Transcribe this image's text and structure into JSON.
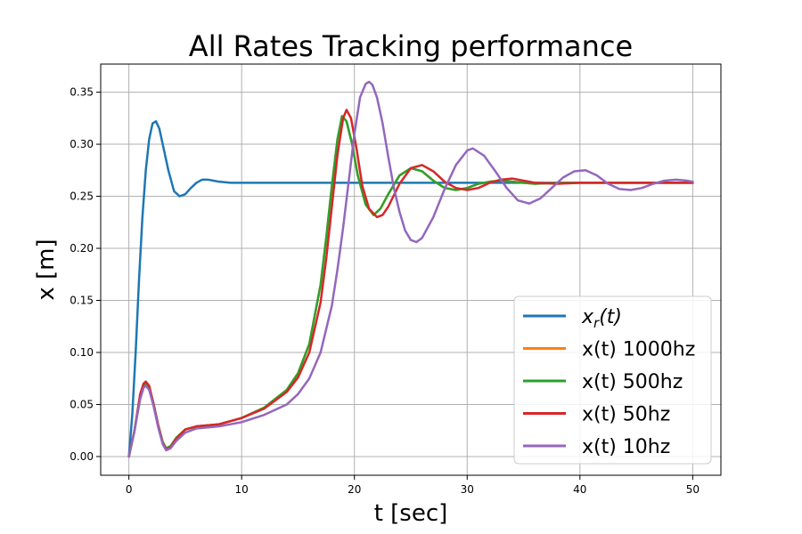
{
  "chart_data": {
    "type": "line",
    "title": "All Rates Tracking performance",
    "xlabel": "t [sec]",
    "ylabel": "x [m]",
    "xlim": [
      -2.5,
      52.5
    ],
    "ylim": [
      -0.018,
      0.377
    ],
    "xticks": [
      0,
      10,
      20,
      30,
      40,
      50
    ],
    "yticks": [
      0.0,
      0.05,
      0.1,
      0.15,
      0.2,
      0.25,
      0.3,
      0.35
    ],
    "xtick_labels": [
      "0",
      "10",
      "20",
      "30",
      "40",
      "50"
    ],
    "ytick_labels": [
      "0.00",
      "0.05",
      "0.10",
      "0.15",
      "0.20",
      "0.25",
      "0.30",
      "0.35"
    ],
    "grid": true,
    "legend_position": "lower-right",
    "series": [
      {
        "name": "x_r(t)",
        "label_base": "x",
        "label_sub": "r",
        "label_tail": "(t)",
        "color": "#1f77b4",
        "x": [
          0,
          0.3,
          0.6,
          0.9,
          1.2,
          1.5,
          1.8,
          2.1,
          2.4,
          2.7,
          3.0,
          3.5,
          4.0,
          4.5,
          5.0,
          5.5,
          6.0,
          6.5,
          7.0,
          7.5,
          8.0,
          9.0,
          10.0,
          12.0,
          15.0,
          20.0,
          30.0,
          40.0,
          50.0
        ],
        "y": [
          0.0,
          0.04,
          0.1,
          0.17,
          0.23,
          0.275,
          0.305,
          0.32,
          0.322,
          0.315,
          0.3,
          0.275,
          0.255,
          0.25,
          0.252,
          0.258,
          0.263,
          0.266,
          0.266,
          0.265,
          0.264,
          0.263,
          0.263,
          0.263,
          0.263,
          0.263,
          0.263,
          0.263,
          0.263
        ]
      },
      {
        "name": "x(t) 1000hz",
        "color": "#ff7f0e",
        "x": [
          0,
          0.5,
          1.0,
          1.3,
          1.5,
          1.8,
          2.2,
          2.6,
          3.0,
          3.3,
          3.7,
          4.2,
          5.0,
          6.0,
          7.0,
          8.0,
          9.0,
          10.0,
          12.0,
          14.0,
          15.0,
          16.0,
          17.0,
          17.5,
          18.0,
          18.5,
          18.9,
          19.3,
          19.8,
          20.3,
          21.0,
          21.7,
          22.3,
          23.0,
          24.0,
          25.0,
          26.0,
          27.0,
          28.0,
          29.0,
          30.0,
          31.0,
          32.0,
          33.0,
          34.0,
          35.0,
          36.0,
          38.0,
          40.0,
          42.0,
          45.0,
          50.0
        ],
        "y": [
          0.0,
          0.025,
          0.058,
          0.068,
          0.07,
          0.066,
          0.05,
          0.03,
          0.014,
          0.008,
          0.01,
          0.018,
          0.026,
          0.029,
          0.03,
          0.031,
          0.034,
          0.037,
          0.047,
          0.064,
          0.08,
          0.108,
          0.165,
          0.21,
          0.26,
          0.305,
          0.327,
          0.322,
          0.3,
          0.27,
          0.242,
          0.232,
          0.238,
          0.252,
          0.27,
          0.277,
          0.274,
          0.265,
          0.258,
          0.256,
          0.258,
          0.262,
          0.264,
          0.265,
          0.264,
          0.263,
          0.262,
          0.263,
          0.263,
          0.263,
          0.263,
          0.263
        ]
      },
      {
        "name": "x(t) 500hz",
        "color": "#2ca02c",
        "x": [
          0,
          0.5,
          1.0,
          1.3,
          1.5,
          1.8,
          2.2,
          2.6,
          3.0,
          3.3,
          3.7,
          4.2,
          5.0,
          6.0,
          7.0,
          8.0,
          9.0,
          10.0,
          12.0,
          14.0,
          15.0,
          16.0,
          17.0,
          17.5,
          18.0,
          18.5,
          18.9,
          19.3,
          19.8,
          20.3,
          21.0,
          21.7,
          22.3,
          23.0,
          24.0,
          25.0,
          26.0,
          27.0,
          28.0,
          29.0,
          30.0,
          31.0,
          32.0,
          33.0,
          34.0,
          35.0,
          36.0,
          38.0,
          40.0,
          42.0,
          45.0,
          50.0
        ],
        "y": [
          0.0,
          0.025,
          0.058,
          0.068,
          0.07,
          0.066,
          0.05,
          0.03,
          0.014,
          0.008,
          0.01,
          0.018,
          0.026,
          0.029,
          0.03,
          0.031,
          0.034,
          0.037,
          0.047,
          0.064,
          0.08,
          0.108,
          0.165,
          0.21,
          0.26,
          0.305,
          0.327,
          0.322,
          0.3,
          0.27,
          0.242,
          0.232,
          0.238,
          0.252,
          0.27,
          0.277,
          0.274,
          0.265,
          0.258,
          0.256,
          0.258,
          0.262,
          0.264,
          0.265,
          0.264,
          0.263,
          0.262,
          0.263,
          0.263,
          0.263,
          0.263,
          0.263
        ]
      },
      {
        "name": "x(t) 50hz",
        "color": "#d62728",
        "x": [
          0,
          0.5,
          1.0,
          1.3,
          1.5,
          1.8,
          2.2,
          2.6,
          3.0,
          3.3,
          3.7,
          4.2,
          5.0,
          6.0,
          7.0,
          8.0,
          9.0,
          10.0,
          12.0,
          14.0,
          15.0,
          16.0,
          17.0,
          17.5,
          18.0,
          18.5,
          19.0,
          19.3,
          19.7,
          20.2,
          20.7,
          21.3,
          22.0,
          22.5,
          23.0,
          24.0,
          25.0,
          26.0,
          27.0,
          28.0,
          29.0,
          30.0,
          31.0,
          32.0,
          33.0,
          34.0,
          35.0,
          36.0,
          38.0,
          40.0,
          42.0,
          45.0,
          50.0
        ],
        "y": [
          0.0,
          0.025,
          0.06,
          0.07,
          0.072,
          0.068,
          0.05,
          0.03,
          0.013,
          0.007,
          0.009,
          0.017,
          0.026,
          0.029,
          0.03,
          0.031,
          0.034,
          0.037,
          0.046,
          0.062,
          0.076,
          0.1,
          0.148,
          0.19,
          0.24,
          0.29,
          0.325,
          0.333,
          0.325,
          0.295,
          0.26,
          0.238,
          0.23,
          0.232,
          0.24,
          0.262,
          0.277,
          0.28,
          0.274,
          0.264,
          0.258,
          0.256,
          0.258,
          0.263,
          0.266,
          0.267,
          0.265,
          0.263,
          0.262,
          0.263,
          0.263,
          0.263,
          0.263
        ]
      },
      {
        "name": "x(t) 10hz",
        "color": "#9467bd",
        "x": [
          0,
          0.5,
          1.0,
          1.3,
          1.5,
          1.8,
          2.2,
          2.6,
          3.0,
          3.3,
          3.7,
          4.2,
          5.0,
          6.0,
          7.0,
          8.0,
          9.0,
          10.0,
          12.0,
          14.0,
          15.0,
          16.0,
          17.0,
          18.0,
          18.5,
          19.0,
          19.5,
          20.0,
          20.5,
          21.0,
          21.3,
          21.6,
          22.0,
          22.5,
          23.0,
          23.5,
          24.0,
          24.5,
          25.0,
          25.5,
          26.0,
          27.0,
          28.0,
          29.0,
          30.0,
          30.5,
          31.5,
          32.5,
          33.5,
          34.5,
          35.5,
          36.5,
          37.5,
          38.5,
          39.5,
          40.5,
          41.5,
          42.5,
          43.5,
          44.5,
          45.5,
          46.5,
          47.5,
          48.5,
          49.5,
          50.0
        ],
        "y": [
          0.0,
          0.025,
          0.055,
          0.066,
          0.068,
          0.064,
          0.048,
          0.028,
          0.012,
          0.006,
          0.008,
          0.015,
          0.023,
          0.027,
          0.028,
          0.029,
          0.031,
          0.033,
          0.04,
          0.05,
          0.06,
          0.075,
          0.1,
          0.145,
          0.18,
          0.22,
          0.265,
          0.31,
          0.345,
          0.358,
          0.36,
          0.357,
          0.345,
          0.32,
          0.288,
          0.258,
          0.235,
          0.217,
          0.208,
          0.206,
          0.21,
          0.23,
          0.257,
          0.28,
          0.294,
          0.296,
          0.289,
          0.274,
          0.258,
          0.246,
          0.243,
          0.248,
          0.258,
          0.268,
          0.274,
          0.275,
          0.27,
          0.262,
          0.257,
          0.256,
          0.258,
          0.262,
          0.265,
          0.266,
          0.265,
          0.264
        ]
      }
    ]
  }
}
